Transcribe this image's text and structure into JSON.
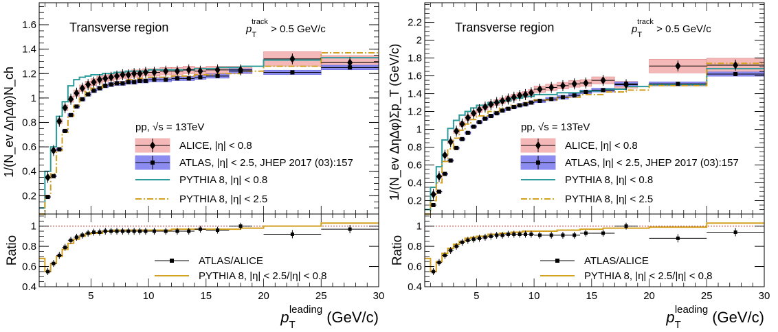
{
  "chart_data": [
    {
      "type": "line",
      "panel": "left",
      "xlabel": "p_T^leading (GeV/c)",
      "xlabel_main": "p",
      "xlabel_sub": "T",
      "xlabel_sup": "leading",
      "xlabel_unit": "(GeV/c)",
      "ylabel": "1/(N_ev ΔηΔφ)N_ch",
      "ratio_ylabel": "Ratio",
      "region_label": "Transverse region",
      "cut_label": "p_T^track > 0.5 GeV/c",
      "cut_main": "p",
      "cut_sub": "T",
      "cut_sup": "track",
      "cut_rest": " > 0.5 GeV/c",
      "collision_label": "pp, √s = 13TeV",
      "xlim": [
        0.5,
        30
      ],
      "ylim": [
        0.05,
        1.78
      ],
      "yticks": [
        0.2,
        0.4,
        0.6,
        0.8,
        1,
        1.2,
        1.4,
        1.6
      ],
      "ratio_ylim": [
        0.4,
        1.12
      ],
      "ratio_yticks": [
        0.4,
        0.6,
        0.8,
        1
      ],
      "xticks": [
        5,
        10,
        15,
        20,
        25,
        30
      ],
      "legend": [
        {
          "label": "ALICE, |η| < 0.8",
          "color": "#000000",
          "band": "#f4b8b8",
          "marker": "diamond"
        },
        {
          "label": "ATLAS, |η| < 2.5, JHEP 2017 (03):157",
          "color": "#000000",
          "band": "#8c8cf0",
          "marker": "square"
        },
        {
          "label": "PYTHIA 8, |η| < 0.8",
          "color": "#2a9a9a",
          "style": "solid"
        },
        {
          "label": "PYTHIA 8, |η| < 2.5",
          "color": "#d4a020",
          "style": "dashdot"
        }
      ],
      "ratio_legend": [
        {
          "label": "ATLAS/ALICE",
          "color": "#000000",
          "marker": "square"
        },
        {
          "label": "PYTHIA 8, |η| < 2.5/|η| < 0.8",
          "color": "#d4a020",
          "style": "solid"
        }
      ],
      "series": [
        {
          "name": "ALICE, |η| < 0.8",
          "x": [
            1.25,
            1.75,
            2.25,
            2.75,
            3.25,
            3.75,
            4.25,
            4.75,
            5.25,
            5.75,
            6.25,
            6.75,
            7.25,
            7.75,
            8.25,
            8.75,
            9.25,
            9.75,
            10.5,
            11.5,
            12.5,
            13.5,
            14.5,
            16,
            18,
            22.5,
            27.5
          ],
          "y": [
            0.35,
            0.57,
            0.81,
            0.92,
            0.99,
            1.04,
            1.08,
            1.11,
            1.13,
            1.15,
            1.16,
            1.17,
            1.18,
            1.19,
            1.19,
            1.2,
            1.2,
            1.21,
            1.21,
            1.22,
            1.22,
            1.23,
            1.22,
            1.23,
            1.23,
            1.32,
            1.29
          ]
        },
        {
          "name": "ATLAS, |η| < 2.5, JHEP 2017 (03):157",
          "x": [
            1.25,
            1.75,
            2.25,
            2.75,
            3.25,
            3.75,
            4.25,
            4.75,
            5.25,
            5.75,
            6.25,
            6.75,
            7.25,
            7.75,
            8.25,
            8.75,
            9.25,
            9.75,
            10.5,
            11.5,
            12.5,
            13.5,
            14.5,
            16,
            18,
            22.5,
            27.5
          ],
          "y": [
            0.19,
            0.36,
            0.58,
            0.73,
            0.86,
            0.93,
            0.99,
            1.03,
            1.06,
            1.08,
            1.1,
            1.11,
            1.12,
            1.12,
            1.13,
            1.13,
            1.14,
            1.14,
            1.15,
            1.15,
            1.16,
            1.16,
            1.17,
            1.18,
            1.22,
            1.21,
            1.25
          ]
        },
        {
          "name": "PYTHIA 8, |η| < 0.8",
          "edges": [
            0.5,
            1,
            1.5,
            2,
            2.5,
            3,
            3.5,
            4,
            4.5,
            5,
            6,
            7,
            8,
            9,
            10,
            12,
            14,
            16,
            18,
            20,
            25,
            30
          ],
          "y": [
            0.1,
            0.4,
            0.6,
            0.85,
            0.97,
            1.1,
            1.15,
            1.17,
            1.18,
            1.19,
            1.2,
            1.21,
            1.22,
            1.22,
            1.23,
            1.23,
            1.24,
            1.25,
            1.26,
            1.31,
            1.33
          ]
        },
        {
          "name": "PYTHIA 8, |η| < 2.5",
          "edges": [
            0.5,
            1,
            1.5,
            2,
            2.5,
            3,
            3.5,
            4,
            4.5,
            5,
            6,
            7,
            8,
            9,
            10,
            12,
            14,
            16,
            18,
            20,
            25,
            30
          ],
          "y": [
            0.05,
            0.2,
            0.38,
            0.57,
            0.72,
            0.85,
            0.94,
            1.0,
            1.05,
            1.08,
            1.11,
            1.13,
            1.15,
            1.16,
            1.17,
            1.18,
            1.19,
            1.2,
            1.22,
            1.26,
            1.37
          ]
        }
      ],
      "ratio": {
        "points": {
          "x": [
            1.25,
            1.75,
            2.25,
            2.75,
            3.25,
            3.75,
            4.25,
            4.75,
            5.25,
            5.75,
            6.25,
            6.75,
            7.25,
            7.75,
            8.25,
            8.75,
            9.25,
            9.75,
            10.5,
            11.5,
            12.5,
            13.5,
            14.5,
            16,
            18,
            22.5,
            27.5
          ],
          "y": [
            0.55,
            0.63,
            0.71,
            0.79,
            0.86,
            0.89,
            0.91,
            0.93,
            0.94,
            0.94,
            0.95,
            0.95,
            0.95,
            0.95,
            0.95,
            0.95,
            0.95,
            0.95,
            0.95,
            0.95,
            0.95,
            0.95,
            0.97,
            0.96,
            1.0,
            0.92,
            0.97
          ]
        },
        "pythia": {
          "edges": [
            0.5,
            1,
            1.5,
            2,
            2.5,
            3,
            3.5,
            4,
            4.5,
            5,
            6,
            7,
            8,
            9,
            10,
            12,
            14,
            16,
            18,
            20,
            25,
            30
          ],
          "y": [
            0.68,
            0.55,
            0.63,
            0.7,
            0.77,
            0.83,
            0.87,
            0.9,
            0.92,
            0.93,
            0.95,
            0.96,
            0.96,
            0.96,
            0.96,
            0.97,
            0.97,
            0.97,
            0.98,
            1.0,
            1.03
          ]
        }
      }
    },
    {
      "type": "line",
      "panel": "right",
      "xlabel": "p_T^leading (GeV/c)",
      "xlabel_main": "p",
      "xlabel_sub": "T",
      "xlabel_sup": "leading",
      "xlabel_unit": "(GeV/c)",
      "ylabel": "1/(N_ev ΔηΔφ)Σp_T (GeV/c)",
      "ratio_ylabel": "Ratio",
      "region_label": "Transverse region",
      "cut_label": "p_T^track > 0.5 GeV/c",
      "cut_main": "p",
      "cut_sub": "T",
      "cut_sup": "track",
      "cut_rest": " > 0.5 GeV/c",
      "collision_label": "pp, √s = 13TeV",
      "xlim": [
        0.5,
        30
      ],
      "ylim": [
        0.05,
        2.42
      ],
      "yticks": [
        0.2,
        0.4,
        0.6,
        0.8,
        1,
        1.2,
        1.4,
        1.6,
        1.8,
        2,
        2.2
      ],
      "ratio_ylim": [
        0.4,
        1.12
      ],
      "ratio_yticks": [
        0.4,
        0.6,
        0.8,
        1
      ],
      "xticks": [
        5,
        10,
        15,
        20,
        25,
        30
      ],
      "legend": [
        {
          "label": "ALICE, |η| < 0.8",
          "color": "#000000",
          "band": "#f4b8b8",
          "marker": "diamond"
        },
        {
          "label": "ATLAS, |η| < 2.5, JHEP 2017 (03):157",
          "color": "#000000",
          "band": "#8c8cf0",
          "marker": "square"
        },
        {
          "label": "PYTHIA 8, |η| < 0.8",
          "color": "#2a9a9a",
          "style": "solid"
        },
        {
          "label": "PYTHIA 8, |η| < 2.5",
          "color": "#d4a020",
          "style": "dashdot"
        }
      ],
      "ratio_legend": [
        {
          "label": "ATLAS/ALICE",
          "color": "#000000",
          "marker": "square"
        },
        {
          "label": "PYTHIA 8, |η| < 2.5/|η| < 0.8",
          "color": "#d4a020",
          "style": "solid"
        }
      ],
      "series": [
        {
          "name": "ALICE, |η| < 0.8",
          "x": [
            1.25,
            1.75,
            2.25,
            2.75,
            3.25,
            3.75,
            4.25,
            4.75,
            5.25,
            5.75,
            6.25,
            6.75,
            7.25,
            7.75,
            8.25,
            8.75,
            9.25,
            9.75,
            10.5,
            11.5,
            12.5,
            13.5,
            14.5,
            16,
            18,
            22.5,
            27.5
          ],
          "y": [
            0.27,
            0.47,
            0.71,
            0.86,
            0.98,
            1.06,
            1.13,
            1.18,
            1.22,
            1.25,
            1.28,
            1.3,
            1.32,
            1.34,
            1.36,
            1.38,
            1.39,
            1.41,
            1.45,
            1.47,
            1.49,
            1.51,
            1.52,
            1.55,
            1.5,
            1.71,
            1.72
          ]
        },
        {
          "name": "ATLAS, |η| < 2.5, JHEP 2017 (03):157",
          "x": [
            1.25,
            1.75,
            2.25,
            2.75,
            3.25,
            3.75,
            4.25,
            4.75,
            5.25,
            5.75,
            6.25,
            6.75,
            7.25,
            7.75,
            8.25,
            8.75,
            9.25,
            9.75,
            10.5,
            11.5,
            12.5,
            13.5,
            14.5,
            16,
            18,
            22.5,
            27.5
          ],
          "y": [
            0.15,
            0.3,
            0.5,
            0.65,
            0.79,
            0.89,
            0.96,
            1.03,
            1.08,
            1.12,
            1.15,
            1.18,
            1.21,
            1.23,
            1.25,
            1.27,
            1.28,
            1.3,
            1.32,
            1.34,
            1.36,
            1.38,
            1.42,
            1.44,
            1.51,
            1.51,
            1.62
          ]
        },
        {
          "name": "PYTHIA 8, |η| < 0.8",
          "edges": [
            0.5,
            1,
            1.5,
            2,
            2.5,
            3,
            3.5,
            4,
            4.5,
            5,
            6,
            7,
            8,
            9,
            10,
            12,
            14,
            16,
            18,
            20,
            25,
            30
          ],
          "y": [
            0.1,
            0.35,
            0.58,
            0.88,
            1.01,
            1.1,
            1.16,
            1.2,
            1.24,
            1.27,
            1.3,
            1.32,
            1.35,
            1.37,
            1.39,
            1.41,
            1.43,
            1.45,
            1.48,
            1.5,
            1.68
          ]
        },
        {
          "name": "PYTHIA 8, |η| < 2.5",
          "edges": [
            0.5,
            1,
            1.5,
            2,
            2.5,
            3,
            3.5,
            4,
            4.5,
            5,
            6,
            7,
            8,
            9,
            10,
            12,
            14,
            16,
            18,
            20,
            25,
            30
          ],
          "y": [
            0.05,
            0.2,
            0.4,
            0.64,
            0.78,
            0.9,
            0.99,
            1.06,
            1.11,
            1.15,
            1.2,
            1.24,
            1.27,
            1.3,
            1.33,
            1.36,
            1.39,
            1.42,
            1.44,
            1.49,
            1.74
          ]
        }
      ],
      "ratio": {
        "points": {
          "x": [
            1.25,
            1.75,
            2.25,
            2.75,
            3.25,
            3.75,
            4.25,
            4.75,
            5.25,
            5.75,
            6.25,
            6.75,
            7.25,
            7.75,
            8.25,
            8.75,
            9.25,
            9.75,
            10.5,
            11.5,
            12.5,
            13.5,
            14.5,
            16,
            18,
            22.5,
            27.5
          ],
          "y": [
            0.55,
            0.64,
            0.71,
            0.76,
            0.8,
            0.84,
            0.86,
            0.87,
            0.88,
            0.89,
            0.9,
            0.91,
            0.91,
            0.92,
            0.92,
            0.92,
            0.92,
            0.92,
            0.91,
            0.91,
            0.91,
            0.91,
            0.93,
            0.93,
            1.0,
            0.88,
            0.94
          ]
        },
        "pythia": {
          "edges": [
            0.5,
            1,
            1.5,
            2,
            2.5,
            3,
            3.5,
            4,
            4.5,
            5,
            6,
            7,
            8,
            9,
            10,
            12,
            14,
            16,
            18,
            20,
            25,
            30
          ],
          "y": [
            0.68,
            0.55,
            0.65,
            0.73,
            0.78,
            0.82,
            0.85,
            0.88,
            0.89,
            0.9,
            0.92,
            0.93,
            0.94,
            0.95,
            0.95,
            0.96,
            0.97,
            0.98,
            0.98,
            0.99,
            1.03
          ]
        }
      }
    }
  ]
}
